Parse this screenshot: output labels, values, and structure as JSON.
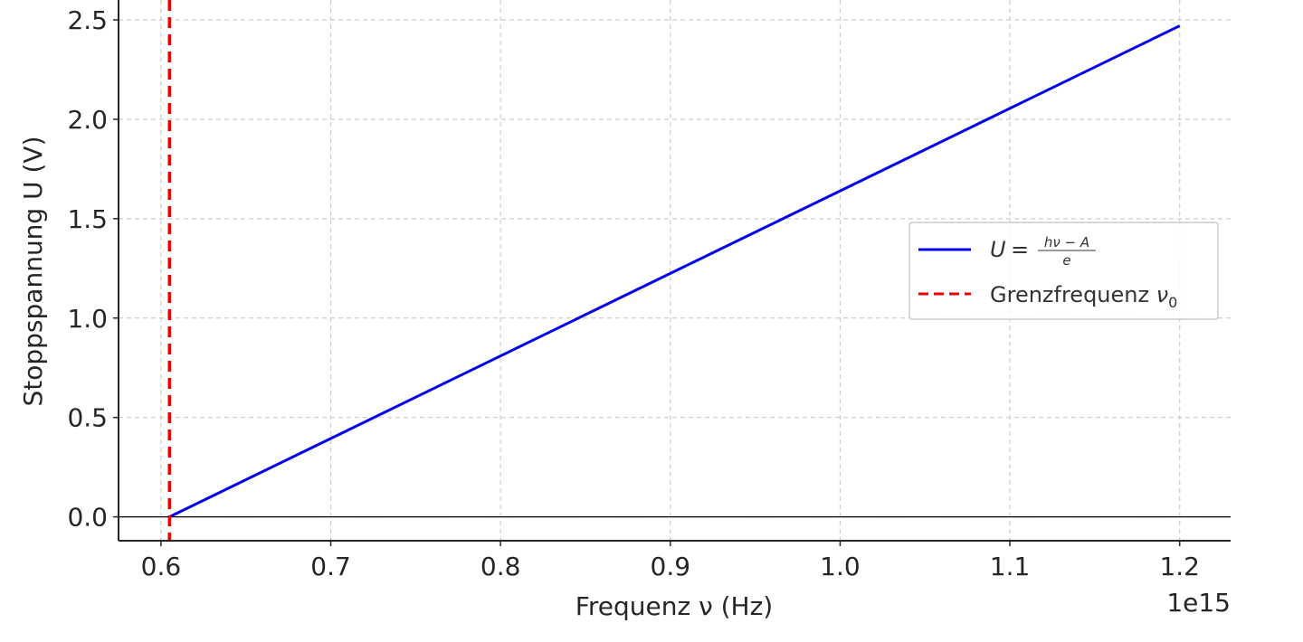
{
  "chart_data": {
    "type": "line",
    "xlabel": "Frequenz ν (Hz)",
    "ylabel": "Stoppspannung U (V)",
    "offset_text": "1e15",
    "xlim": [
      0.575,
      1.23
    ],
    "ylim": [
      -0.12,
      2.6
    ],
    "xticks": [
      0.6,
      0.7,
      0.8,
      0.9,
      1.0,
      1.1,
      1.2
    ],
    "xtick_labels": [
      "0.6",
      "0.7",
      "0.8",
      "0.9",
      "1.0",
      "1.1",
      "1.2"
    ],
    "yticks": [
      0.0,
      0.5,
      1.0,
      1.5,
      2.0,
      2.5
    ],
    "ytick_labels": [
      "0.0",
      "0.5",
      "1.0",
      "1.5",
      "2.0",
      "2.5"
    ],
    "grid": true,
    "legend_position": "center-right",
    "horizontal_reference": 0.0,
    "series": [
      {
        "name": "U = (hν − A) / e",
        "style": "solid",
        "color": "#0000ee",
        "x": [
          0.605,
          1.2
        ],
        "y": [
          0.0,
          2.47
        ]
      },
      {
        "name": "Grenzfrequenz ν0",
        "style": "dashed",
        "color": "#ee0000",
        "vertical_line_x": 0.605
      }
    ],
    "legend": {
      "entry1": {
        "lhs": "U",
        "eq": "=",
        "numerator": "hν − A",
        "denominator": "e"
      },
      "entry2": {
        "text": "Grenzfrequenz ",
        "symbol": "ν",
        "subscript": "0"
      }
    }
  }
}
